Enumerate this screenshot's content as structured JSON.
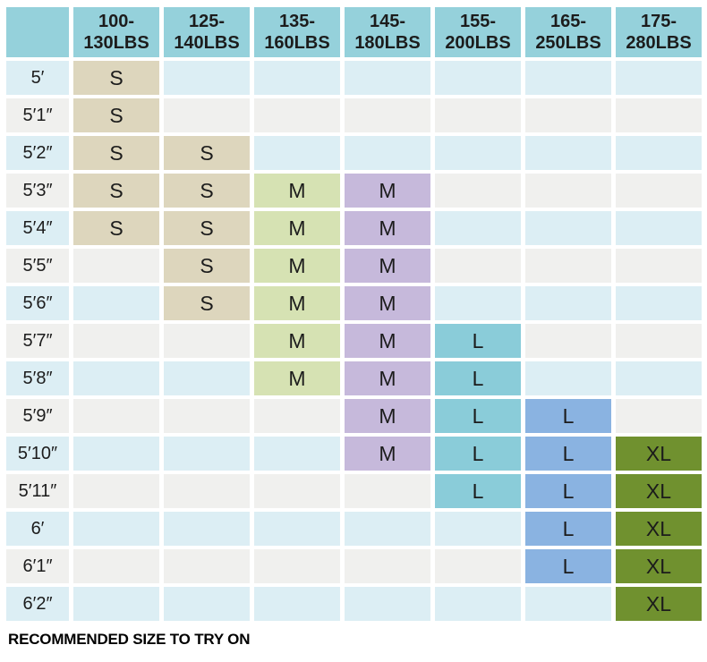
{
  "chart_data": {
    "type": "table",
    "title": "",
    "note": "RECOMMENDED SIZE TO TRY ON",
    "corner_label": "",
    "columns": [
      "100-130LBS",
      "125-140LBS",
      "135-160LBS",
      "145-180LBS",
      "155-200LBS",
      "165-250LBS",
      "175-280LBS"
    ],
    "rows": [
      {
        "height": "5′",
        "cells": [
          "S",
          "",
          "",
          "",
          "",
          "",
          ""
        ]
      },
      {
        "height": "5′1″",
        "cells": [
          "S",
          "",
          "",
          "",
          "",
          "",
          ""
        ]
      },
      {
        "height": "5′2″",
        "cells": [
          "S",
          "S",
          "",
          "",
          "",
          "",
          ""
        ]
      },
      {
        "height": "5′3″",
        "cells": [
          "S",
          "S",
          "M",
          "M",
          "",
          "",
          ""
        ]
      },
      {
        "height": "5′4″",
        "cells": [
          "S",
          "S",
          "M",
          "M",
          "",
          "",
          ""
        ]
      },
      {
        "height": "5′5″",
        "cells": [
          "",
          "S",
          "M",
          "M",
          "",
          "",
          ""
        ]
      },
      {
        "height": "5′6″",
        "cells": [
          "",
          "S",
          "M",
          "M",
          "",
          "",
          ""
        ]
      },
      {
        "height": "5′7″",
        "cells": [
          "",
          "",
          "M",
          "M",
          "L",
          "",
          ""
        ]
      },
      {
        "height": "5′8″",
        "cells": [
          "",
          "",
          "M",
          "M",
          "L",
          "",
          ""
        ]
      },
      {
        "height": "5′9″",
        "cells": [
          "",
          "",
          "",
          "M",
          "L",
          "L",
          ""
        ]
      },
      {
        "height": "5′10″",
        "cells": [
          "",
          "",
          "",
          "M",
          "L",
          "L",
          "XL"
        ]
      },
      {
        "height": "5′11″",
        "cells": [
          "",
          "",
          "",
          "",
          "L",
          "L",
          "XL"
        ]
      },
      {
        "height": "6′",
        "cells": [
          "",
          "",
          "",
          "",
          "",
          "L",
          "XL"
        ]
      },
      {
        "height": "6′1″",
        "cells": [
          "",
          "",
          "",
          "",
          "",
          "L",
          "XL"
        ]
      },
      {
        "height": "6′2″",
        "cells": [
          "",
          "",
          "",
          "",
          "",
          "",
          "XL"
        ]
      }
    ]
  },
  "colors": {
    "header_bg": "#95d1db",
    "row_blue": "#dceef4",
    "row_gray": "#f0f0ee",
    "text_dark": "#1c1c1c",
    "gap_white": "#ffffff",
    "size_s_tan": "#ddd6bd",
    "size_m_green": "#d6e2b3",
    "size_m_purple": "#c6b9db",
    "size_l_teal": "#8accd9",
    "size_l_blue": "#8ab3e1",
    "size_xl_olive": "#70912f",
    "column_cell_colors": [
      "#ddd6bd",
      "#ddd6bd",
      "#d6e2b3",
      "#c6b9db",
      "#8accd9",
      "#8ab3e1",
      "#70912f"
    ]
  }
}
